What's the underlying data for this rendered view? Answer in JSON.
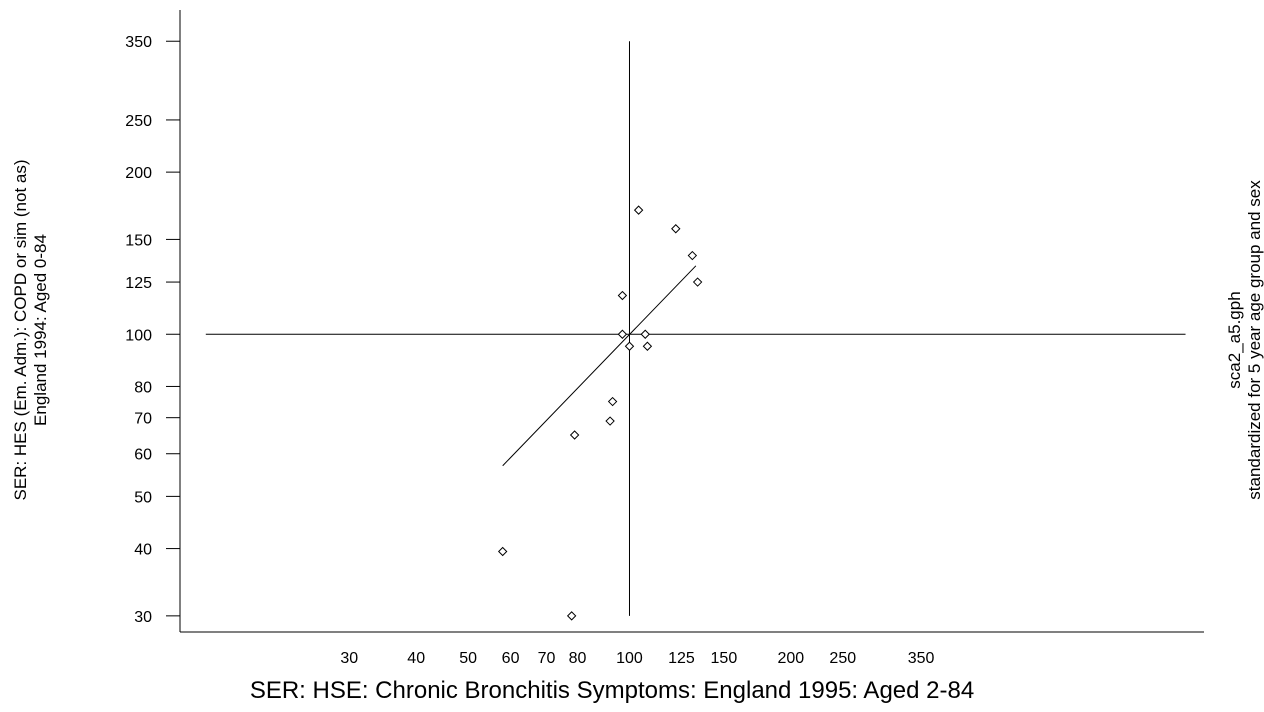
{
  "chart_data": {
    "type": "scatter",
    "xlabel": "SER: HSE: Chronic Bronchitis Symptoms: England 1995: Aged 2-84",
    "ylabel_line1": "SER: HES (Em. Adm.): COPD or sim (not as)",
    "ylabel_line2": "England 1994: Aged 0-84",
    "right_label_line1": "sca2_a5.gph",
    "right_label_line2": "standardized for 5 year age group and sex",
    "x_scale": "log",
    "y_scale": "log",
    "x_ticks": [
      30,
      40,
      50,
      60,
      70,
      80,
      100,
      125,
      150,
      200,
      250,
      350
    ],
    "y_ticks": [
      30,
      40,
      50,
      60,
      70,
      80,
      100,
      125,
      150,
      200,
      250,
      350
    ],
    "x_axis_range": [
      14.5,
      1180
    ],
    "y_axis_range": [
      28,
      400
    ],
    "reference_lines": {
      "x": 100,
      "y": 100
    },
    "points": [
      {
        "x": 58,
        "y": 39.5
      },
      {
        "x": 78,
        "y": 30
      },
      {
        "x": 79,
        "y": 65
      },
      {
        "x": 92,
        "y": 69
      },
      {
        "x": 93,
        "y": 75
      },
      {
        "x": 97,
        "y": 118
      },
      {
        "x": 97,
        "y": 100
      },
      {
        "x": 100,
        "y": 95
      },
      {
        "x": 104,
        "y": 170
      },
      {
        "x": 107,
        "y": 100
      },
      {
        "x": 108,
        "y": 95
      },
      {
        "x": 122,
        "y": 157
      },
      {
        "x": 131,
        "y": 140
      },
      {
        "x": 134,
        "y": 125
      }
    ],
    "fit_line": {
      "x": [
        58,
        133
      ],
      "y": [
        57,
        134
      ]
    },
    "marker": "diamond",
    "grid": false,
    "legend": "none"
  }
}
